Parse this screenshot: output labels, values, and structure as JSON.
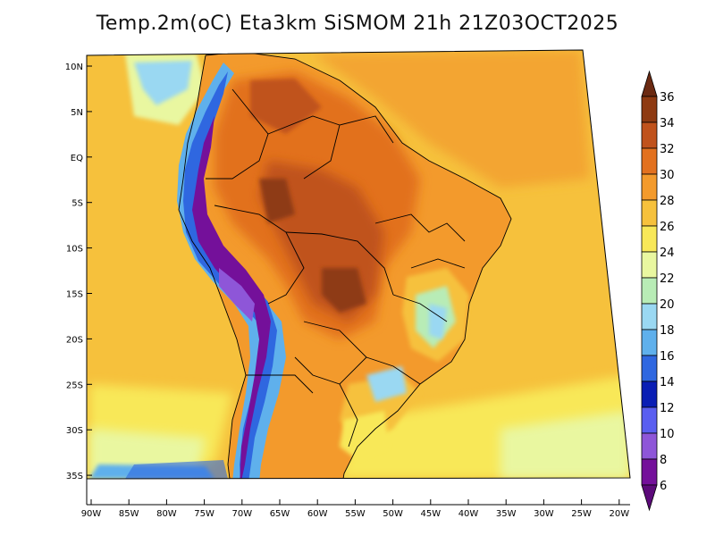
{
  "title": "Temp.2m(oC) Eta3km SiSMOM 21h 21Z03OCT2025",
  "map": {
    "variable": "2m temperature",
    "unit": "oC",
    "model": "Eta3km SiSMOM",
    "region": "South America",
    "lat_labels": [
      "10N",
      "5N",
      "EQ",
      "5S",
      "10S",
      "15S",
      "20S",
      "25S",
      "30S",
      "35S"
    ],
    "lon_labels": [
      "90W",
      "85W",
      "80W",
      "75W",
      "70W",
      "65W",
      "60W",
      "55W",
      "50W",
      "45W",
      "40W",
      "35W",
      "30W",
      "25W",
      "20W"
    ]
  },
  "colorbar": {
    "labels": [
      "36",
      "34",
      "32",
      "30",
      "28",
      "26",
      "24",
      "22",
      "20",
      "18",
      "16",
      "14",
      "12",
      "10",
      "8",
      "6"
    ],
    "colors": [
      "#6b2a12",
      "#8e3a12",
      "#c0521c",
      "#e2711f",
      "#f39a2c",
      "#f6c13c",
      "#f8e858",
      "#e9f7a0",
      "#b8ecb6",
      "#9ad8f2",
      "#5fb0ec",
      "#2f67e0",
      "#0a1eb4",
      "#5a5ef0",
      "#8e56d8",
      "#74109a",
      "#5c0a7a"
    ]
  }
}
